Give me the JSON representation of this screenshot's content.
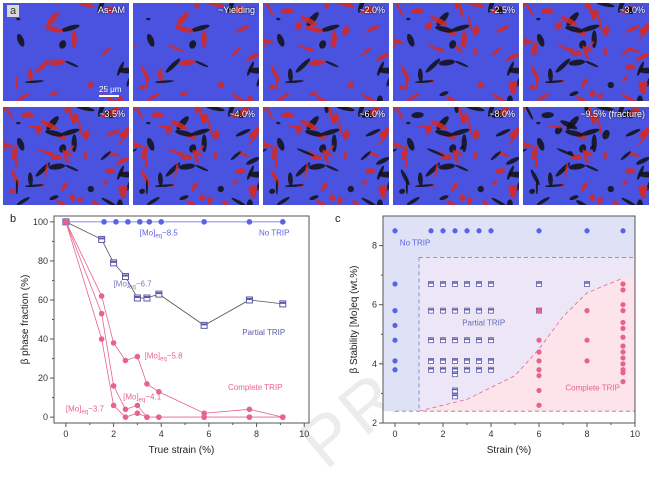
{
  "figure": {
    "panel_a": {
      "letter": "a",
      "scale_bar": "25 μm",
      "tiles": [
        {
          "label": "As-AM"
        },
        {
          "label": "~Yielding"
        },
        {
          "label": "~2.0%"
        },
        {
          "label": "~2.5%"
        },
        {
          "label": "~3.0%"
        },
        {
          "label": "~3.5%"
        },
        {
          "label": "~4.0%"
        },
        {
          "label": "~6.0%"
        },
        {
          "label": "~8.0%"
        },
        {
          "label": "~9.5% (fracture)"
        }
      ],
      "phase_colors": {
        "beta": "#4a52e0",
        "alpha_prime_prime": "#d8281e",
        "boundary": "#111111"
      }
    },
    "watermark": "PRESS"
  },
  "chart_data": [
    {
      "id": "b",
      "panel_letter": "b",
      "type": "line",
      "title": "",
      "xlabel": "True strain (%)",
      "ylabel": "β phase fraction (%)",
      "xlim": [
        -0.5,
        10.2
      ],
      "ylim": [
        -3,
        103
      ],
      "xticks": [
        0,
        2,
        4,
        6,
        8,
        10
      ],
      "yticks": [
        0,
        20,
        40,
        60,
        80,
        100
      ],
      "grid": false,
      "series": [
        {
          "name": "[Mo]eq~8.5",
          "group": "No TRIP",
          "color": "#5a63e6",
          "marker": "circle",
          "x": [
            0,
            1.6,
            2.1,
            2.6,
            3.1,
            3.5,
            4.0,
            5.8,
            7.7,
            9.1
          ],
          "y": [
            100,
            100,
            100,
            100,
            100,
            100,
            100,
            100,
            100,
            100
          ]
        },
        {
          "name": "[Mo]eq~6.7",
          "group": "Partial TRIP",
          "color": "#5a5aa8",
          "marker": "square",
          "x": [
            0,
            1.5,
            2.0,
            2.5,
            3.0,
            3.4,
            3.9,
            5.8,
            7.7,
            9.1
          ],
          "y": [
            100,
            91,
            79,
            72,
            61,
            61,
            63,
            47,
            60,
            58
          ]
        },
        {
          "name": "[Mo]eq~5.8",
          "group": "Complete TRIP",
          "color": "#e8638c",
          "marker": "circle",
          "x": [
            0,
            1.5,
            2.0,
            2.5,
            3.0,
            3.4,
            3.9,
            5.8,
            7.7,
            9.1
          ],
          "y": [
            100,
            62,
            38,
            29,
            31,
            17,
            13,
            2,
            4,
            0
          ]
        },
        {
          "name": "[Mo]eq~4.1",
          "group": "Complete TRIP",
          "color": "#e8638c",
          "marker": "circle",
          "x": [
            0,
            1.5,
            2.0,
            2.5,
            3.0,
            3.4,
            3.9,
            5.8,
            7.7,
            9.1
          ],
          "y": [
            100,
            53,
            16,
            4,
            6,
            0,
            0,
            0,
            0,
            0
          ]
        },
        {
          "name": "[Mo]eq~3.7",
          "group": "Complete TRIP",
          "color": "#e8638c",
          "marker": "circle",
          "x": [
            0,
            1.5,
            2.0,
            2.5,
            3.0,
            3.4,
            3.9,
            5.8,
            7.7,
            9.1
          ],
          "y": [
            100,
            40,
            6,
            0,
            2,
            0,
            0,
            0,
            0,
            0
          ]
        }
      ],
      "annotations": [
        {
          "text": "[Mo]",
          "sub": "eq",
          "suffix": "~8.5",
          "x": 3.1,
          "y": 93,
          "color": "#5a63e6"
        },
        {
          "text": "No TRIP",
          "x": 8.1,
          "y": 93,
          "color": "#5a63e6"
        },
        {
          "text": "[Mo]",
          "sub": "eq",
          "suffix": "~6.7",
          "x": 2.0,
          "y": 67,
          "color": "#7a7ab8"
        },
        {
          "text": "Partial TRIP",
          "x": 7.4,
          "y": 42,
          "color": "#5a5aa8"
        },
        {
          "text": "[Mo]",
          "sub": "eq",
          "suffix": "~5.8",
          "x": 3.3,
          "y": 30,
          "color": "#e8638c"
        },
        {
          "text": "Complete TRIP",
          "x": 6.8,
          "y": 14,
          "color": "#e8638c"
        },
        {
          "text": "[Mo]",
          "sub": "eq",
          "suffix": "~4.1",
          "x": 2.4,
          "y": 9,
          "color": "#e8638c"
        },
        {
          "text": "[Mo]",
          "sub": "eq",
          "suffix": "~3.7",
          "x": 0.0,
          "y": 3,
          "color": "#e8638c"
        }
      ]
    },
    {
      "id": "c",
      "panel_letter": "c",
      "type": "scatter",
      "title": "",
      "xlabel": "Strain (%)",
      "ylabel": "β Stability [Mo]eq (wt.%)",
      "xlim": [
        -0.5,
        10
      ],
      "ylim": [
        2,
        9
      ],
      "xticks": [
        0,
        2,
        4,
        6,
        8,
        10
      ],
      "yticks": [
        2,
        4,
        6,
        8
      ],
      "grid": false,
      "regions": [
        {
          "name": "No TRIP",
          "color": "#dfe2f7"
        },
        {
          "name": "Partial TRIP",
          "color": "#ece6f6",
          "bounds": {
            "x0": 1.0,
            "y_top": 7.6,
            "y_bottom": 2.4
          }
        },
        {
          "name": "Complete TRIP",
          "color": "#fde3ea",
          "boundary_curve": [
            [
              1.0,
              2.4
            ],
            [
              3.0,
              2.8
            ],
            [
              5.0,
              3.6
            ],
            [
              6.0,
              4.5
            ],
            [
              7.0,
              5.6
            ],
            [
              8.0,
              6.4
            ],
            [
              9.5,
              6.9
            ]
          ]
        }
      ],
      "series": [
        {
          "name": "No TRIP",
          "color": "#5a63e6",
          "marker": "circle",
          "points": [
            [
              0,
              8.5
            ],
            [
              0,
              6.7
            ],
            [
              0,
              5.8
            ],
            [
              0,
              5.3
            ],
            [
              0,
              4.8
            ],
            [
              0,
              4.1
            ],
            [
              0,
              3.8
            ],
            [
              1.5,
              8.5
            ],
            [
              2,
              8.5
            ],
            [
              2.5,
              8.5
            ],
            [
              3,
              8.5
            ],
            [
              3.5,
              8.5
            ],
            [
              4,
              8.5
            ],
            [
              6,
              8.5
            ],
            [
              8,
              8.5
            ],
            [
              9.5,
              8.5
            ]
          ]
        },
        {
          "name": "Partial TRIP",
          "color": "#5a5aa8",
          "marker": "square",
          "points": [
            [
              1.5,
              6.7
            ],
            [
              2,
              6.7
            ],
            [
              2.5,
              6.7
            ],
            [
              3,
              6.7
            ],
            [
              3.5,
              6.7
            ],
            [
              4,
              6.7
            ],
            [
              6,
              6.7
            ],
            [
              8,
              6.7
            ],
            [
              1.5,
              5.8
            ],
            [
              2,
              5.8
            ],
            [
              2.5,
              5.8
            ],
            [
              3,
              5.8
            ],
            [
              3.5,
              5.8
            ],
            [
              4,
              5.8
            ],
            [
              6,
              5.8
            ],
            [
              1.5,
              4.8
            ],
            [
              2,
              4.8
            ],
            [
              2.5,
              4.8
            ],
            [
              3,
              4.8
            ],
            [
              3.5,
              4.8
            ],
            [
              4,
              4.8
            ],
            [
              1.5,
              4.1
            ],
            [
              2,
              4.1
            ],
            [
              2.5,
              4.1
            ],
            [
              3,
              4.1
            ],
            [
              3.5,
              4.1
            ],
            [
              4,
              4.1
            ],
            [
              1.5,
              3.8
            ],
            [
              2,
              3.8
            ],
            [
              2.5,
              3.8
            ],
            [
              3,
              3.8
            ],
            [
              3.5,
              3.8
            ],
            [
              4,
              3.8
            ],
            [
              2.5,
              3.65
            ],
            [
              2.5,
              3.1
            ],
            [
              2.5,
              2.9
            ]
          ]
        },
        {
          "name": "Complete TRIP",
          "color": "#e8638c",
          "marker": "circle",
          "points": [
            [
              6,
              5.8
            ],
            [
              6,
              4.8
            ],
            [
              6,
              4.4
            ],
            [
              6,
              4.1
            ],
            [
              6,
              3.8
            ],
            [
              6,
              3.6
            ],
            [
              6,
              3.1
            ],
            [
              6,
              2.6
            ],
            [
              8,
              5.8
            ],
            [
              8,
              4.8
            ],
            [
              8,
              4.1
            ],
            [
              9.5,
              6.7
            ],
            [
              9.5,
              6.5
            ],
            [
              9.5,
              6.0
            ],
            [
              9.5,
              5.8
            ],
            [
              9.5,
              5.4
            ],
            [
              9.5,
              5.2
            ],
            [
              9.5,
              4.9
            ],
            [
              9.5,
              4.6
            ],
            [
              9.5,
              4.4
            ],
            [
              9.5,
              4.2
            ],
            [
              9.5,
              4.0
            ],
            [
              9.5,
              3.8
            ],
            [
              9.5,
              3.7
            ],
            [
              9.5,
              3.4
            ]
          ]
        }
      ],
      "annotations": [
        {
          "text": "No TRIP",
          "x": 0.2,
          "y": 8.0,
          "color": "#5a63e6"
        },
        {
          "text": "Partial TRIP",
          "x": 2.8,
          "y": 5.3,
          "color": "#6a6ab8"
        },
        {
          "text": "Complete TRIP",
          "x": 7.1,
          "y": 3.1,
          "color": "#e8638c"
        }
      ]
    }
  ]
}
